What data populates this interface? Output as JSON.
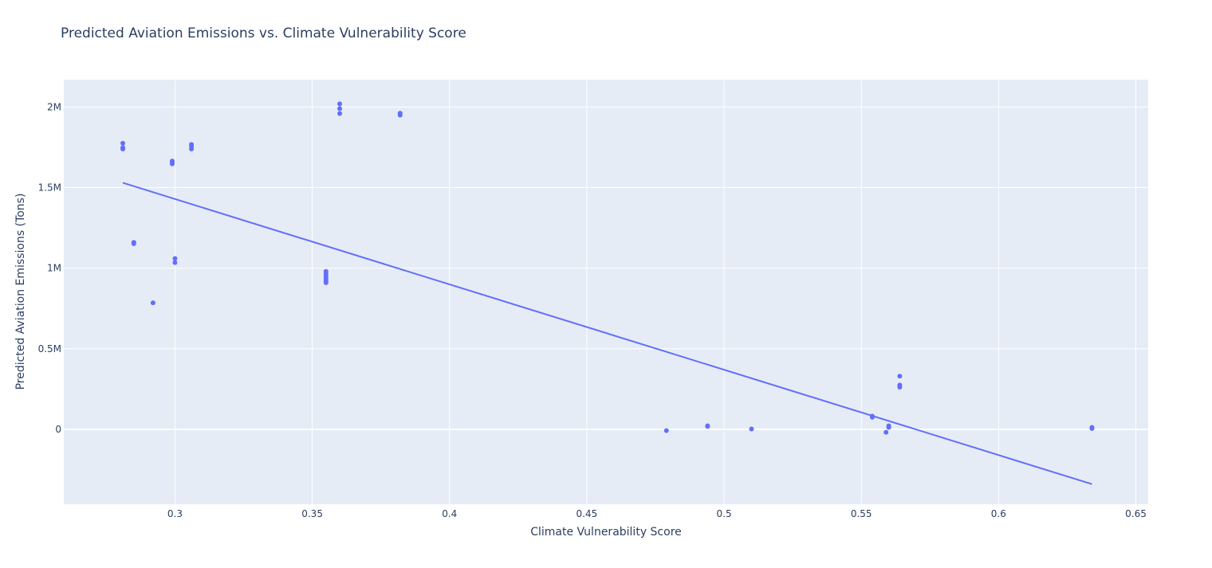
{
  "chart_data": {
    "type": "scatter",
    "title": "Predicted Aviation Emissions vs. Climate Vulnerability Score",
    "xlabel": "Climate Vulnerability Score",
    "ylabel": "Predicted Aviation Emissions (Tons)",
    "xlim": [
      0.2595,
      0.6545
    ],
    "ylim": [
      -465000,
      2170000
    ],
    "x_ticks": [
      0.3,
      0.35,
      0.4,
      0.45,
      0.5,
      0.55,
      0.6,
      0.65
    ],
    "x_tick_labels": [
      "0.3",
      "0.35",
      "0.4",
      "0.45",
      "0.5",
      "0.55",
      "0.6",
      "0.65"
    ],
    "y_ticks": [
      0,
      500000,
      1000000,
      1500000,
      2000000
    ],
    "y_tick_labels": [
      "0",
      "0.5M",
      "1M",
      "1.5M",
      "2M"
    ],
    "grid": true,
    "colors": {
      "marker": "#636efa",
      "line": "#636efa",
      "plot_bg": "#e5ecf6",
      "grid": "#ffffff",
      "text": "#2a3f5f"
    },
    "points": [
      {
        "x": 0.281,
        "y": 1775000
      },
      {
        "x": 0.281,
        "y": 1748000
      },
      {
        "x": 0.281,
        "y": 1740000
      },
      {
        "x": 0.285,
        "y": 1160000
      },
      {
        "x": 0.285,
        "y": 1152000
      },
      {
        "x": 0.292,
        "y": 785000
      },
      {
        "x": 0.299,
        "y": 1665000
      },
      {
        "x": 0.299,
        "y": 1655000
      },
      {
        "x": 0.299,
        "y": 1648000
      },
      {
        "x": 0.3,
        "y": 1060000
      },
      {
        "x": 0.3,
        "y": 1035000
      },
      {
        "x": 0.306,
        "y": 1768000
      },
      {
        "x": 0.306,
        "y": 1755000
      },
      {
        "x": 0.306,
        "y": 1740000
      },
      {
        "x": 0.355,
        "y": 980000
      },
      {
        "x": 0.355,
        "y": 965000
      },
      {
        "x": 0.355,
        "y": 950000
      },
      {
        "x": 0.355,
        "y": 935000
      },
      {
        "x": 0.355,
        "y": 922000
      },
      {
        "x": 0.355,
        "y": 910000
      },
      {
        "x": 0.36,
        "y": 2020000
      },
      {
        "x": 0.36,
        "y": 1990000
      },
      {
        "x": 0.36,
        "y": 1960000
      },
      {
        "x": 0.382,
        "y": 1962000
      },
      {
        "x": 0.382,
        "y": 1950000
      },
      {
        "x": 0.479,
        "y": -8000
      },
      {
        "x": 0.494,
        "y": 22000
      },
      {
        "x": 0.494,
        "y": 18000
      },
      {
        "x": 0.51,
        "y": 2000
      },
      {
        "x": 0.554,
        "y": 82000
      },
      {
        "x": 0.554,
        "y": 75000
      },
      {
        "x": 0.559,
        "y": -18000
      },
      {
        "x": 0.56,
        "y": 22000
      },
      {
        "x": 0.56,
        "y": 12000
      },
      {
        "x": 0.564,
        "y": 330000
      },
      {
        "x": 0.564,
        "y": 275000
      },
      {
        "x": 0.564,
        "y": 262000
      },
      {
        "x": 0.634,
        "y": 12000
      },
      {
        "x": 0.634,
        "y": 5000
      }
    ],
    "trendline": {
      "x": [
        0.281,
        0.634
      ],
      "y": [
        1530000,
        -340000
      ]
    }
  }
}
